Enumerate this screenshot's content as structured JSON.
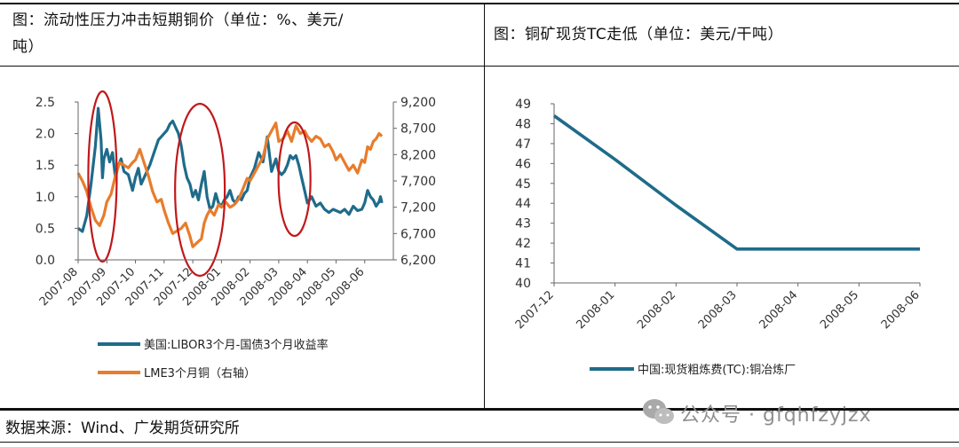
{
  "left_panel": {
    "title_line1": "图：流动性压力冲击短期铜价（单位：%、美元/",
    "title_line2": "吨）"
  },
  "right_panel": {
    "title": "图：铜矿现货TC走低（单位：美元/干吨）"
  },
  "footer": {
    "source": "数据来源：Wind、广发期货研究所"
  },
  "watermark": {
    "text": "公众号 · gfqhfzyjzx",
    "icon": "wechat-icon"
  },
  "chart_data": [
    {
      "type": "line",
      "x_ticks": [
        "2007-08",
        "2007-09",
        "2007-10",
        "2007-11",
        "2007-12",
        "2008-01",
        "2008-02",
        "2008-03",
        "2008-04",
        "2008-05",
        "2008-06"
      ],
      "y_left": {
        "ticks": [
          "0.0",
          "0.5",
          "1.0",
          "1.5",
          "2.0",
          "2.5"
        ],
        "ylim": [
          0,
          2.5
        ]
      },
      "y_right": {
        "ticks": [
          "6,200",
          "6,700",
          "7,200",
          "7,700",
          "8,200",
          "8,700",
          "9,200"
        ],
        "ylim": [
          6200,
          9200
        ]
      },
      "series": [
        {
          "name": "美国:LIBOR3个月-国债3个月收益率",
          "axis": "left",
          "color": "#1f6b8a",
          "x": [
            0,
            0.15,
            0.3,
            0.45,
            0.6,
            0.7,
            0.8,
            0.85,
            0.9,
            1.0,
            1.1,
            1.2,
            1.3,
            1.4,
            1.5,
            1.6,
            1.75,
            1.9,
            2.0,
            2.1,
            2.2,
            2.35,
            2.5,
            2.65,
            2.8,
            2.9,
            3.0,
            3.1,
            3.2,
            3.3,
            3.4,
            3.5,
            3.6,
            3.7,
            3.8,
            3.9,
            4.0,
            4.1,
            4.2,
            4.3,
            4.4,
            4.5,
            4.6,
            4.7,
            4.8,
            4.9,
            5.0,
            5.1,
            5.2,
            5.3,
            5.4,
            5.5,
            5.6,
            5.7,
            5.8,
            5.9,
            6.0,
            6.15,
            6.3,
            6.45,
            6.6,
            6.75,
            6.9,
            7.0,
            7.1,
            7.2,
            7.3,
            7.4,
            7.5,
            7.6,
            7.7,
            7.8,
            7.9,
            8.0,
            8.15,
            8.3,
            8.45,
            8.6,
            8.75,
            8.9,
            9.0,
            9.15,
            9.3,
            9.45,
            9.6,
            9.75,
            9.9,
            10.0,
            10.1,
            10.2,
            10.3,
            10.4,
            10.5,
            10.55,
            10.6
          ],
          "values": [
            0.5,
            0.45,
            0.7,
            1.2,
            1.8,
            2.4,
            1.9,
            1.3,
            1.6,
            1.75,
            1.55,
            1.7,
            1.3,
            1.5,
            1.6,
            1.4,
            1.35,
            1.1,
            1.3,
            1.45,
            1.2,
            1.35,
            1.5,
            1.7,
            1.9,
            1.95,
            2.0,
            2.05,
            2.15,
            2.2,
            2.1,
            2.0,
            1.8,
            1.5,
            1.3,
            1.2,
            1.0,
            1.1,
            0.95,
            1.2,
            1.4,
            1.0,
            0.8,
            0.85,
            1.05,
            0.9,
            0.85,
            0.95,
            1.0,
            1.1,
            0.95,
            0.9,
            1.0,
            0.95,
            1.05,
            1.1,
            1.3,
            1.45,
            1.7,
            1.55,
            1.95,
            1.4,
            1.6,
            1.4,
            1.35,
            1.4,
            1.5,
            1.65,
            1.6,
            1.65,
            1.5,
            1.3,
            1.1,
            0.9,
            1.0,
            0.85,
            0.9,
            0.8,
            0.75,
            0.8,
            0.78,
            0.75,
            0.8,
            0.72,
            0.85,
            0.78,
            0.8,
            0.9,
            1.1,
            1.0,
            0.95,
            0.85,
            0.92,
            1.0,
            0.9
          ]
        },
        {
          "name": "LME3个月铜（右轴）",
          "axis": "right",
          "color": "#e87c2b",
          "x": [
            0,
            0.15,
            0.3,
            0.45,
            0.6,
            0.75,
            0.9,
            1.0,
            1.15,
            1.3,
            1.45,
            1.6,
            1.75,
            1.9,
            2.0,
            2.15,
            2.3,
            2.45,
            2.6,
            2.75,
            2.9,
            3.0,
            3.15,
            3.3,
            3.45,
            3.6,
            3.75,
            3.9,
            4.0,
            4.1,
            4.2,
            4.3,
            4.4,
            4.5,
            4.6,
            4.75,
            4.9,
            5.0,
            5.15,
            5.3,
            5.45,
            5.6,
            5.75,
            5.9,
            6.0,
            6.15,
            6.3,
            6.45,
            6.6,
            6.75,
            6.9,
            7.0,
            7.15,
            7.3,
            7.45,
            7.6,
            7.75,
            7.9,
            8.0,
            8.15,
            8.3,
            8.45,
            8.6,
            8.75,
            8.9,
            9.0,
            9.15,
            9.3,
            9.45,
            9.6,
            9.75,
            9.9,
            10.0,
            10.1,
            10.2,
            10.3,
            10.4,
            10.5,
            10.6
          ],
          "values": [
            7850,
            7700,
            7500,
            7200,
            6950,
            6850,
            7050,
            7300,
            7450,
            7800,
            8050,
            8000,
            7950,
            8050,
            8100,
            8300,
            8050,
            7800,
            7500,
            7300,
            7350,
            7150,
            6900,
            6700,
            6750,
            6800,
            6900,
            6650,
            6450,
            6500,
            6550,
            6600,
            6900,
            7050,
            7150,
            7050,
            7250,
            7200,
            7300,
            7200,
            7250,
            7350,
            7550,
            7750,
            7700,
            7850,
            8000,
            8150,
            8500,
            8650,
            8800,
            8450,
            8500,
            8650,
            8450,
            8750,
            8600,
            8650,
            8550,
            8450,
            8550,
            8500,
            8350,
            8400,
            8250,
            8100,
            8200,
            8050,
            7900,
            8000,
            7850,
            8100,
            8050,
            8350,
            8300,
            8450,
            8500,
            8600,
            8550
          ]
        }
      ],
      "annotations": [
        "ellipse",
        "ellipse",
        "ellipse"
      ]
    },
    {
      "type": "line",
      "categories": [
        "2007-12",
        "2008-01",
        "2008-02",
        "2008-03",
        "2008-04",
        "2008-05",
        "2008-06"
      ],
      "ylim": [
        40,
        49
      ],
      "y_ticks": [
        "40",
        "41",
        "42",
        "43",
        "44",
        "45",
        "46",
        "47",
        "48",
        "49"
      ],
      "series": [
        {
          "name": "中国:现货粗炼费(TC):铜冶炼厂",
          "color": "#1f6b8a",
          "values": [
            48.4,
            46.2,
            43.9,
            41.7,
            41.7,
            41.7,
            41.7
          ]
        }
      ]
    }
  ]
}
